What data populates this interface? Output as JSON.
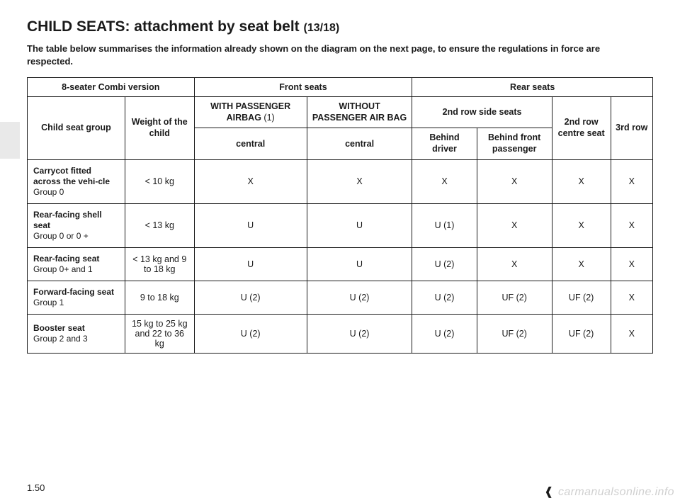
{
  "title_main": "CHILD SEATS: attachment by seat belt ",
  "title_part": "(13/18)",
  "subtitle": "The table below summarises the information already shown on the diagram on the next page, to ensure the regulations in force are respected.",
  "header": {
    "top_left": "8-seater Combi version",
    "front": "Front seats",
    "rear": "Rear seats",
    "child_group": "Child seat group",
    "weight": "Weight of the child",
    "with_airbag": "WITH PASSENGER AIRBAG",
    "with_airbag_note": "(1)",
    "without_airbag": "WITHOUT PASSENGER AIR BAG",
    "second_row_side": "2nd row side seats",
    "second_row_centre": "2nd row centre seat",
    "third_row": "3rd row",
    "central_a": "central",
    "central_b": "central",
    "behind_driver": "Behind driver",
    "behind_passenger": "Behind front passenger"
  },
  "rows": [
    {
      "label_strong": "Carrycot fitted across the vehi-cle",
      "label_sub": "Group 0",
      "weight": "< 10 kg",
      "cells": [
        "X",
        "X",
        "X",
        "X",
        "X",
        "X"
      ]
    },
    {
      "label_strong": "Rear-facing shell seat",
      "label_sub": "Group 0 or 0 +",
      "weight": "< 13 kg",
      "cells": [
        "U",
        "U",
        "U (1)",
        "X",
        "X",
        "X"
      ]
    },
    {
      "label_strong": "Rear-facing seat",
      "label_sub": "Group 0+ and 1",
      "weight": "< 13 kg and 9 to 18 kg",
      "cells": [
        "U",
        "U",
        "U (2)",
        "X",
        "X",
        "X"
      ]
    },
    {
      "label_strong": "Forward-facing seat",
      "label_sub": "Group 1",
      "weight": "9 to 18 kg",
      "cells": [
        "U (2)",
        "U (2)",
        "U (2)",
        "UF (2)",
        "UF (2)",
        "X"
      ]
    },
    {
      "label_strong": "Booster seat",
      "label_sub": "Group 2 and 3",
      "weight": "15 kg to 25 kg and 22 to 36 kg",
      "cells": [
        "U (2)",
        "U (2)",
        "U (2)",
        "UF (2)",
        "UF (2)",
        "X"
      ]
    }
  ],
  "footer_page": "1.50",
  "watermark": "carmanualsonline.info"
}
